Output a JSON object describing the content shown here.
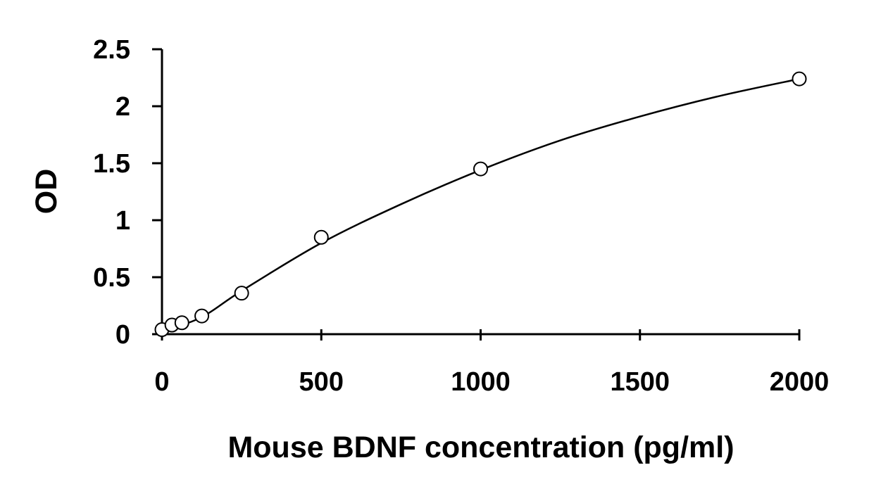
{
  "chart_data": {
    "type": "scatter",
    "title": "",
    "xlabel": "Mouse BDNF concentration (pg/ml)",
    "ylabel": "OD",
    "xlim": [
      0,
      2000
    ],
    "ylim": [
      0,
      2.5
    ],
    "x_ticks": [
      0,
      500,
      1000,
      1500,
      2000
    ],
    "x_tick_labels": [
      "0",
      "500",
      "1000",
      "1500",
      "2000"
    ],
    "y_ticks": [
      0,
      0.5,
      1,
      1.5,
      2,
      2.5
    ],
    "y_tick_labels": [
      "0",
      "0.5",
      "1",
      "1.5",
      "2",
      "2.5"
    ],
    "grid": false,
    "legend": "none",
    "series": [
      {
        "marker": "open-circle",
        "points": [
          {
            "x": 0,
            "y": 0.04
          },
          {
            "x": 31.25,
            "y": 0.08
          },
          {
            "x": 62.5,
            "y": 0.1
          },
          {
            "x": 125,
            "y": 0.16
          },
          {
            "x": 250,
            "y": 0.36
          },
          {
            "x": 500,
            "y": 0.85
          },
          {
            "x": 1000,
            "y": 1.45
          },
          {
            "x": 2000,
            "y": 2.24
          }
        ]
      }
    ],
    "fit_curve": {
      "type": "polynomial",
      "points": [
        {
          "x": 0,
          "y": 0.02
        },
        {
          "x": 125,
          "y": 0.15
        },
        {
          "x": 250,
          "y": 0.38
        },
        {
          "x": 500,
          "y": 0.8
        },
        {
          "x": 750,
          "y": 1.14
        },
        {
          "x": 1000,
          "y": 1.44
        },
        {
          "x": 1250,
          "y": 1.7
        },
        {
          "x": 1500,
          "y": 1.91
        },
        {
          "x": 1750,
          "y": 2.09
        },
        {
          "x": 2000,
          "y": 2.24
        }
      ]
    },
    "colors": {
      "axis": "#000000",
      "marker_stroke": "#000000",
      "marker_fill": "#ffffff",
      "curve": "#000000"
    }
  }
}
